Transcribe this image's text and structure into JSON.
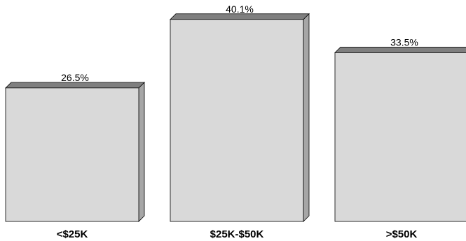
{
  "chart_data": {
    "type": "bar",
    "categories": [
      "<$25K",
      "$25K-$50K",
      ">$50K"
    ],
    "values": [
      26.5,
      40.1,
      33.5
    ],
    "value_labels": [
      "26.5%",
      "40.1%",
      "33.5%"
    ],
    "bar_style": "3d",
    "grid": false,
    "legend": "none",
    "colors": {
      "bar_front": "#d9d9d9",
      "bar_side": "#a6a6a6",
      "bar_top": "#7f7f7f",
      "outline": "#000000"
    }
  }
}
